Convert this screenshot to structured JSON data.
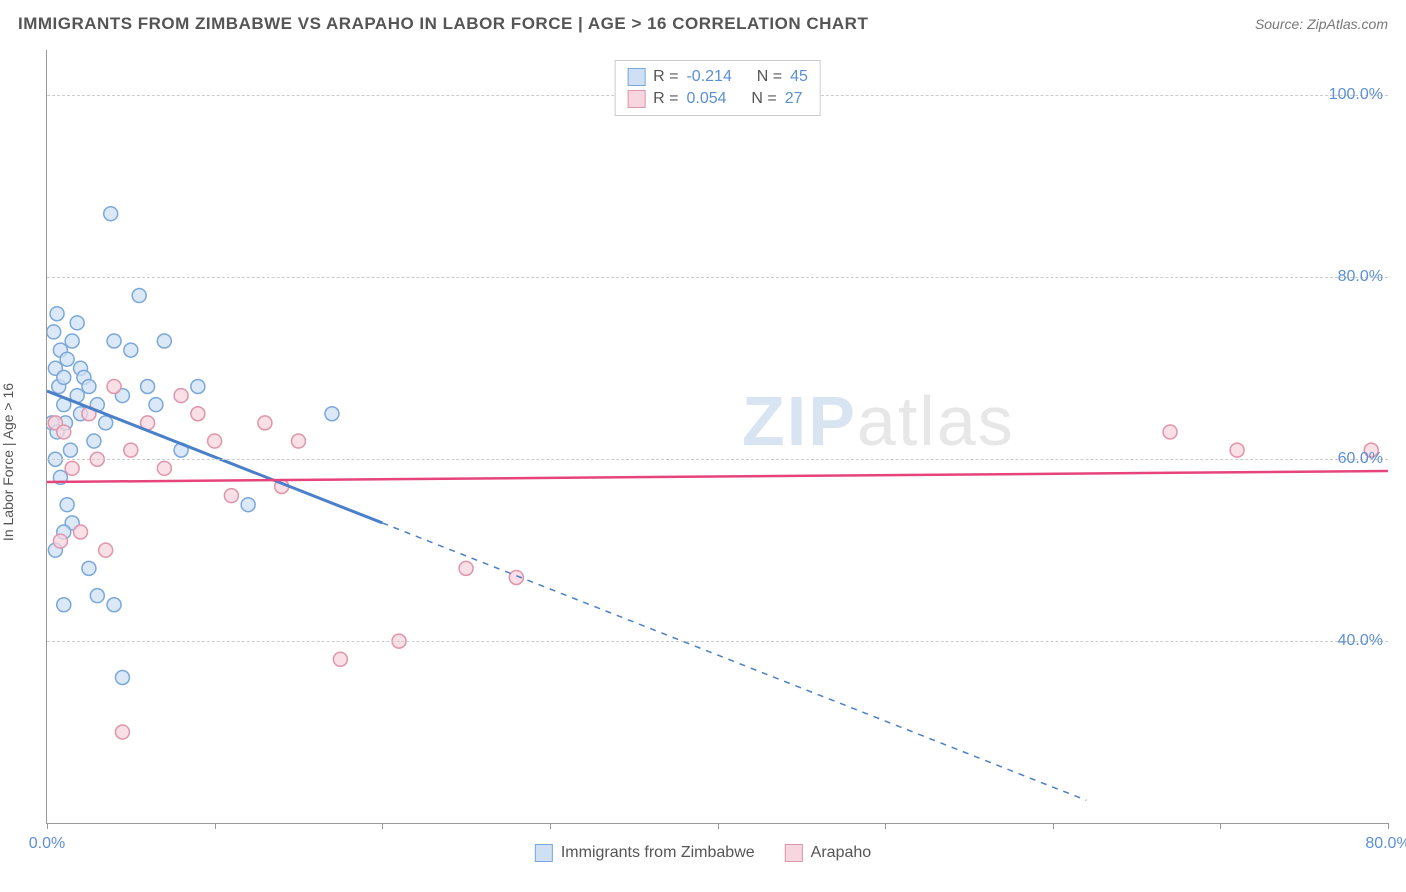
{
  "title": "IMMIGRANTS FROM ZIMBABWE VS ARAPAHO IN LABOR FORCE | AGE > 16 CORRELATION CHART",
  "source_label": "Source: ZipAtlas.com",
  "y_axis_label": "In Labor Force | Age > 16",
  "watermark_zip": "ZIP",
  "watermark_atlas": "atlas",
  "chart": {
    "type": "scatter",
    "background_color": "#ffffff",
    "grid_color": "#cccccc",
    "axis_color": "#999999",
    "tick_label_color": "#5b8fd6",
    "xlim": [
      0,
      80
    ],
    "ylim": [
      20,
      105
    ],
    "y_ticks": [
      40,
      60,
      80,
      100
    ],
    "y_tick_labels": [
      "40.0%",
      "60.0%",
      "80.0%",
      "100.0%"
    ],
    "x_ticks": [
      0,
      10,
      20,
      30,
      40,
      50,
      60,
      70,
      80
    ],
    "x_tick_labels_shown": {
      "0": "0.0%",
      "80": "80.0%"
    },
    "marker_radius": 7,
    "marker_stroke_width": 1.5,
    "series": [
      {
        "name": "Immigrants from Zimbabwe",
        "fill": "#cfe0f5",
        "stroke": "#7aa8da",
        "trend_color": "#4a7fc9",
        "trend_width": 3,
        "R": "-0.214",
        "N": "45",
        "trend_solid": {
          "x1": 0,
          "y1": 67.5,
          "x2": 20,
          "y2": 53
        },
        "trend_dashed": {
          "x1": 20,
          "y1": 53,
          "x2": 62,
          "y2": 22.5
        },
        "points": [
          [
            0.5,
            70
          ],
          [
            0.8,
            72
          ],
          [
            0.7,
            68
          ],
          [
            1.0,
            69
          ],
          [
            1.2,
            71
          ],
          [
            1.5,
            73
          ],
          [
            1.0,
            66
          ],
          [
            0.3,
            64
          ],
          [
            0.6,
            63
          ],
          [
            1.8,
            75
          ],
          [
            2.0,
            70
          ],
          [
            2.2,
            69
          ],
          [
            0.5,
            60
          ],
          [
            0.8,
            58
          ],
          [
            1.2,
            55
          ],
          [
            1.5,
            53
          ],
          [
            2.5,
            68
          ],
          [
            3.0,
            66
          ],
          [
            3.5,
            64
          ],
          [
            4.0,
            73
          ],
          [
            4.5,
            67
          ],
          [
            5.0,
            72
          ],
          [
            5.5,
            78
          ],
          [
            6.0,
            68
          ],
          [
            6.5,
            66
          ],
          [
            7.0,
            73
          ],
          [
            3.8,
            87
          ],
          [
            2.8,
            62
          ],
          [
            1.0,
            44
          ],
          [
            3.0,
            45
          ],
          [
            4.0,
            44
          ],
          [
            12.0,
            55
          ],
          [
            17.0,
            65
          ],
          [
            4.5,
            36
          ],
          [
            2.0,
            65
          ],
          [
            1.8,
            67
          ],
          [
            8.0,
            61
          ],
          [
            9.0,
            68
          ],
          [
            2.5,
            48
          ],
          [
            0.5,
            50
          ],
          [
            1.0,
            52
          ],
          [
            0.4,
            74
          ],
          [
            0.6,
            76
          ],
          [
            1.1,
            64
          ],
          [
            1.4,
            61
          ]
        ]
      },
      {
        "name": "Arapaho",
        "fill": "#f7d6df",
        "stroke": "#e194ab",
        "trend_color": "#e6447a",
        "trend_width": 2.5,
        "R": "0.054",
        "N": "27",
        "trend_solid": {
          "x1": 0,
          "y1": 57.5,
          "x2": 80,
          "y2": 58.7
        },
        "points": [
          [
            0.5,
            64
          ],
          [
            1.0,
            63
          ],
          [
            1.5,
            59
          ],
          [
            2.0,
            52
          ],
          [
            0.8,
            51
          ],
          [
            2.5,
            65
          ],
          [
            3.0,
            60
          ],
          [
            4.0,
            68
          ],
          [
            5.0,
            61
          ],
          [
            6.0,
            64
          ],
          [
            7.0,
            59
          ],
          [
            8.0,
            67
          ],
          [
            9.0,
            65
          ],
          [
            10.0,
            62
          ],
          [
            11.0,
            56
          ],
          [
            13.0,
            64
          ],
          [
            14.0,
            57
          ],
          [
            15.0,
            62
          ],
          [
            21.0,
            40
          ],
          [
            25.0,
            48
          ],
          [
            28.0,
            47
          ],
          [
            17.5,
            38
          ],
          [
            67.0,
            63
          ],
          [
            71.0,
            61
          ],
          [
            79.0,
            61
          ],
          [
            4.5,
            30
          ],
          [
            3.5,
            50
          ]
        ]
      }
    ]
  },
  "legend_top": {
    "rows": [
      {
        "swatch_fill": "#cfe0f5",
        "swatch_stroke": "#7aa8da",
        "r_label": "R =",
        "r_val": "-0.214",
        "n_label": "N =",
        "n_val": "45"
      },
      {
        "swatch_fill": "#f7d6df",
        "swatch_stroke": "#e194ab",
        "r_label": "R =",
        "r_val": "0.054",
        "n_label": "N =",
        "n_val": "27"
      }
    ]
  },
  "legend_bottom": {
    "items": [
      {
        "swatch_fill": "#cfe0f5",
        "swatch_stroke": "#7aa8da",
        "label": "Immigrants from Zimbabwe"
      },
      {
        "swatch_fill": "#f7d6df",
        "swatch_stroke": "#e194ab",
        "label": "Arapaho"
      }
    ]
  }
}
